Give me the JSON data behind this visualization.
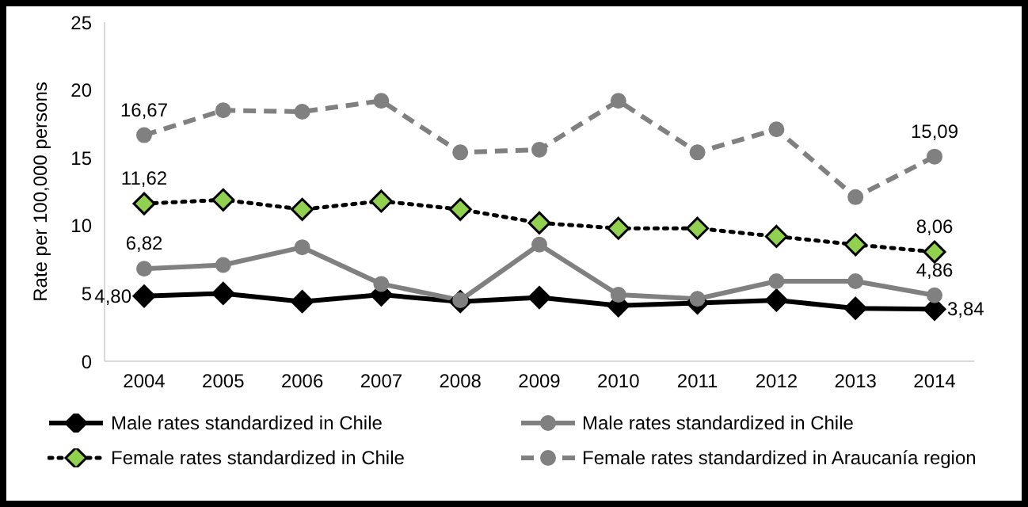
{
  "chart_data": {
    "type": "line",
    "ylabel": "Rate per 100,000 persons",
    "categories": [
      "2004",
      "2005",
      "2006",
      "2007",
      "2008",
      "2009",
      "2010",
      "2011",
      "2012",
      "2013",
      "2014"
    ],
    "series": [
      {
        "name": "Male rates standardized in Chile",
        "color": "#000000",
        "marker": "diamond",
        "line_style": "solid",
        "values": [
          4.8,
          5.0,
          4.4,
          4.9,
          4.4,
          4.7,
          4.1,
          4.3,
          4.5,
          3.9,
          3.84
        ],
        "value_labels": [
          "4,80",
          null,
          null,
          null,
          null,
          null,
          null,
          null,
          null,
          null,
          "3,84"
        ]
      },
      {
        "name": "Male rates standardized in Chile",
        "color": "#808080",
        "marker": "circle",
        "line_style": "solid",
        "values": [
          6.82,
          7.1,
          8.4,
          5.7,
          4.5,
          8.6,
          4.9,
          4.6,
          5.9,
          5.9,
          4.86
        ],
        "value_labels": [
          "6,82",
          null,
          null,
          null,
          null,
          null,
          null,
          null,
          null,
          null,
          "4,86"
        ]
      },
      {
        "name": "Female rates standardized in Chile",
        "color": "#000000",
        "marker": "diamond",
        "line_style": "dotted",
        "values": [
          11.62,
          11.9,
          11.2,
          11.8,
          11.2,
          10.2,
          9.8,
          9.8,
          9.2,
          8.6,
          8.06
        ],
        "value_labels": [
          "11,62",
          null,
          null,
          null,
          null,
          null,
          null,
          null,
          null,
          null,
          "8,06"
        ]
      },
      {
        "name": "Female rates standardized in Araucanía region",
        "color": "#808080",
        "marker": "circle",
        "line_style": "dashed",
        "values": [
          16.67,
          18.5,
          18.4,
          19.2,
          15.4,
          15.6,
          19.2,
          15.4,
          17.1,
          12.1,
          15.09
        ],
        "value_labels": [
          "16,67",
          null,
          null,
          null,
          null,
          null,
          null,
          null,
          null,
          null,
          "15,09"
        ]
      }
    ],
    "ylim": [
      0,
      25
    ],
    "yticks": [
      0,
      5,
      10,
      15,
      20,
      25
    ],
    "grid": false,
    "legend": "bottom"
  }
}
